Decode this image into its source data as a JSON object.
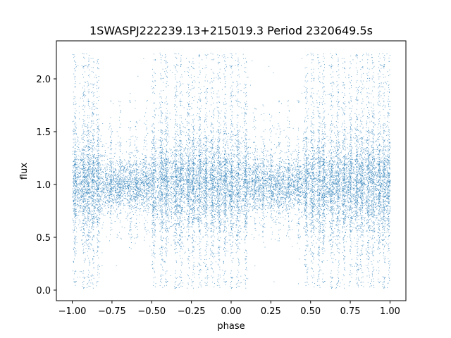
{
  "chart_data": {
    "type": "scatter",
    "title": "1SWASPJ222239.13+215019.3 Period 2320649.5s",
    "xlabel": "phase",
    "ylabel": "flux",
    "xlim": [
      -1.1,
      1.1
    ],
    "ylim": [
      -0.1,
      2.36
    ],
    "xticks": [
      -1.0,
      -0.75,
      -0.5,
      -0.25,
      0.0,
      0.25,
      0.5,
      0.75,
      1.0
    ],
    "xtick_labels": [
      "−1.00",
      "−0.75",
      "−0.50",
      "−0.25",
      "0.00",
      "0.25",
      "0.50",
      "0.75",
      "1.00"
    ],
    "yticks": [
      0.0,
      0.5,
      1.0,
      1.5,
      2.0
    ],
    "ytick_labels": [
      "0.0",
      "0.5",
      "1.0",
      "1.5",
      "2.0"
    ],
    "grid": false,
    "marker_color": "#1f77b4",
    "series": [
      {
        "x_range": [
          -1.0,
          1.0
        ],
        "baseline_flux": 1.0,
        "core_spread": [
          0.7,
          1.3
        ],
        "sparse_flux_range": [
          0.02,
          2.25
        ],
        "dense_column_phases": [
          -0.985,
          -0.93,
          -0.9,
          -0.87,
          -0.84,
          -0.76,
          -0.7,
          -0.64,
          -0.6,
          -0.54,
          -0.49,
          -0.44,
          -0.41,
          -0.35,
          -0.32,
          -0.27,
          -0.24,
          -0.2,
          -0.16,
          -0.12,
          -0.08,
          -0.04,
          0.0,
          0.04,
          0.09,
          0.15,
          0.2,
          0.25,
          0.3,
          0.36,
          0.42,
          0.47,
          0.51,
          0.55,
          0.58,
          0.63,
          0.67,
          0.71,
          0.75,
          0.79,
          0.82,
          0.86,
          0.89,
          0.93,
          0.96,
          0.99
        ],
        "quiet_intervals": [
          [
            -0.8,
            -0.5
          ],
          [
            0.12,
            0.45
          ]
        ]
      }
    ]
  }
}
